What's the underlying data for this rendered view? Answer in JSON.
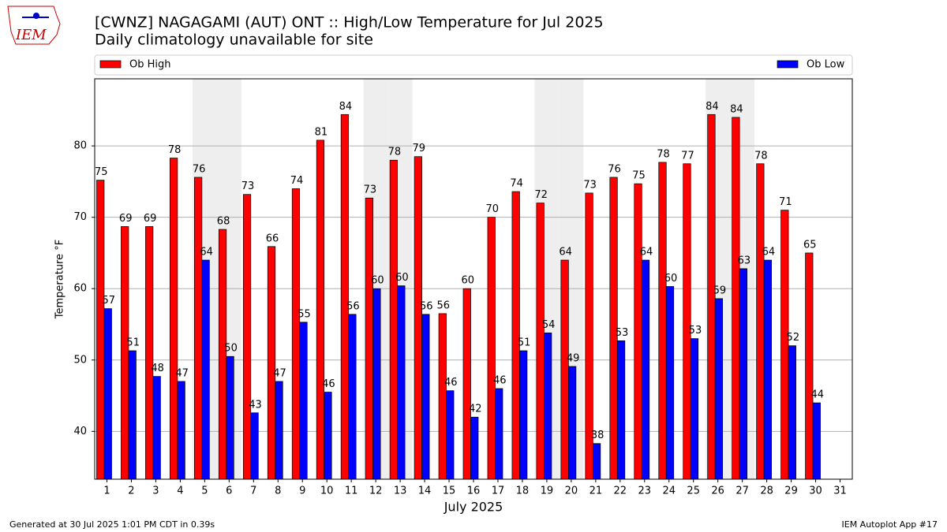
{
  "logo_text": "IEM",
  "footer_left": "Generated at 30 Jul 2025 1:01 PM CDT in 0.39s",
  "footer_right": "IEM Autoplot App #17",
  "chart_data": {
    "type": "bar",
    "title": "[CWNZ] NAGAGAMI (AUT)  ONT :: High/Low Temperature for Jul 2025",
    "subtitle": "Daily climatology unavailable for site",
    "x_label": "July 2025",
    "y_label": "Temperature °F",
    "categories": [
      "1",
      "2",
      "3",
      "4",
      "5",
      "6",
      "7",
      "8",
      "9",
      "10",
      "11",
      "12",
      "13",
      "14",
      "15",
      "16",
      "17",
      "18",
      "19",
      "20",
      "21",
      "22",
      "23",
      "24",
      "25",
      "26",
      "27",
      "28",
      "29",
      "30",
      "31"
    ],
    "highlight_categories": [
      "5",
      "6",
      "12",
      "13",
      "19",
      "20",
      "26",
      "27"
    ],
    "series": [
      {
        "name": "Ob High",
        "color": "#ff0000",
        "values": [
          75.2,
          68.7,
          68.7,
          78.3,
          75.6,
          68.3,
          73.2,
          65.9,
          74.0,
          80.8,
          84.4,
          72.7,
          78.0,
          78.5,
          56.5,
          60.0,
          70.0,
          73.6,
          72.0,
          64.0,
          73.4,
          75.6,
          74.7,
          77.7,
          77.5,
          84.4,
          84.0,
          77.5,
          71.0,
          65.0,
          null
        ],
        "value_labels": [
          "75",
          "69",
          "69",
          "78",
          "76",
          "68",
          "73",
          "66",
          "74",
          "81",
          "84",
          "73",
          "78",
          "79",
          "56",
          "60",
          "70",
          "74",
          "72",
          "64",
          "73",
          "76",
          "75",
          "78",
          "77",
          "84",
          "84",
          "78",
          "71",
          "65",
          null
        ]
      },
      {
        "name": "Ob Low",
        "color": "#0000ff",
        "values": [
          57.2,
          51.3,
          47.7,
          47.0,
          64.0,
          50.5,
          42.6,
          47.0,
          55.3,
          45.5,
          56.4,
          60.0,
          60.4,
          56.4,
          45.7,
          42.0,
          46.0,
          51.3,
          53.8,
          49.1,
          38.3,
          52.7,
          64.0,
          60.3,
          53.0,
          58.6,
          62.8,
          64.0,
          52.0,
          44.0,
          null
        ],
        "value_labels": [
          "57",
          "51",
          "48",
          "47",
          "64",
          "50",
          "43",
          "47",
          "55",
          "46",
          "56",
          "60",
          "60",
          "56",
          "46",
          "42",
          "46",
          "51",
          "54",
          "49",
          "38",
          "53",
          "64",
          "60",
          "53",
          "59",
          "63",
          "64",
          "52",
          "44",
          null
        ]
      }
    ],
    "ylim": [
      33.3,
      89.4
    ],
    "yticks": [
      40,
      50,
      60,
      70,
      80
    ],
    "grid": true,
    "legend": "top"
  }
}
